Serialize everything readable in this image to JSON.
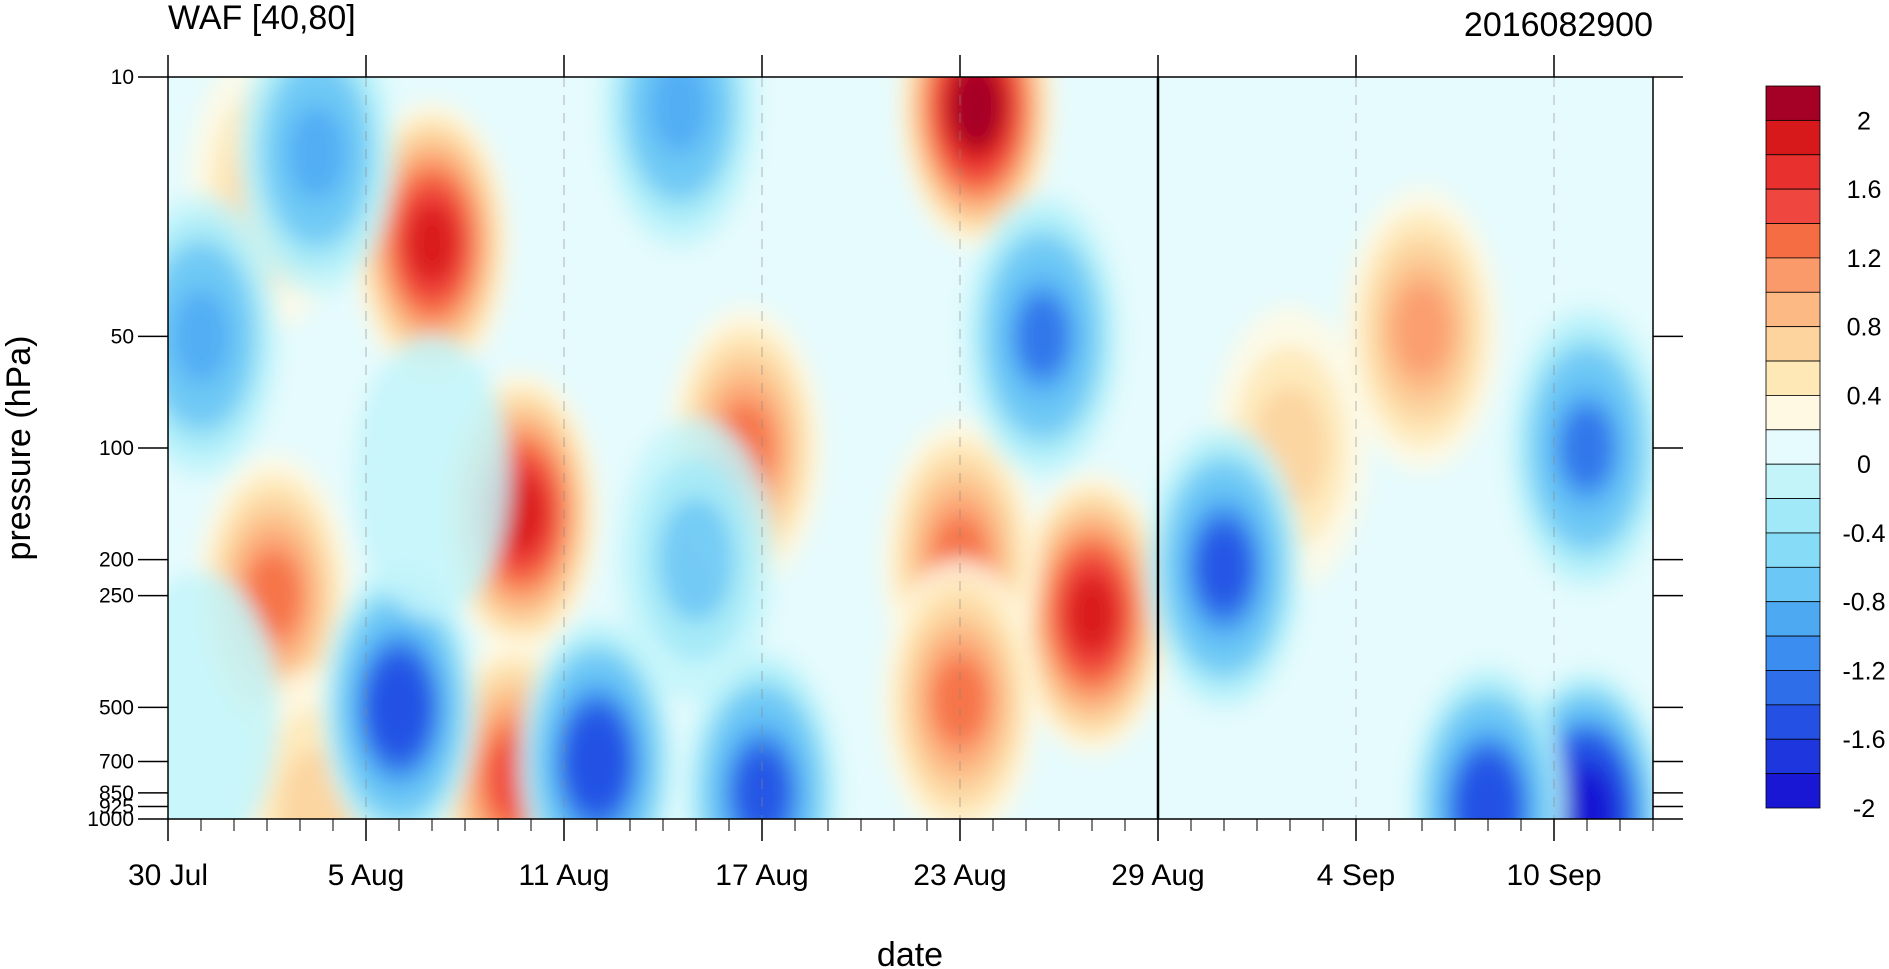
{
  "chart_data": {
    "type": "heatmap",
    "title": "WAF [40,80]",
    "subtitle": "2016082900",
    "xlabel": "date",
    "ylabel": "pressure (hPa)",
    "x_ticks": [
      "30 Jul",
      "5 Aug",
      "11 Aug",
      "17 Aug",
      "23 Aug",
      "29 Aug",
      "4 Sep",
      "10 Sep"
    ],
    "x_range": [
      "2016-07-30",
      "2016-09-13"
    ],
    "y_scale": "log",
    "y_reversed": true,
    "y_ticks": [
      10,
      50,
      100,
      200,
      250,
      500,
      700,
      850,
      925,
      1000
    ],
    "y_range": [
      1000,
      10
    ],
    "vertical_marker": "29 Aug",
    "colorbar": {
      "labels": [
        "2",
        "1.6",
        "1.2",
        "0.8",
        "0.4",
        "0",
        "-0.4",
        "-0.8",
        "-1.2",
        "-1.6",
        "-2"
      ],
      "levels": [
        2.2,
        2.0,
        1.8,
        1.6,
        1.4,
        1.2,
        1.0,
        0.8,
        0.6,
        0.4,
        0.2,
        0.0,
        -0.2,
        -0.4,
        -0.6,
        -0.8,
        -1.0,
        -1.2,
        -1.4,
        -1.6,
        -1.8,
        -2.0,
        -2.2
      ],
      "colors": [
        "#a50026",
        "#d7191c",
        "#e8312f",
        "#f04640",
        "#f46d43",
        "#fa9a6b",
        "#fcb984",
        "#fdd49e",
        "#fee8b5",
        "#fff9e4",
        "#e6fbfd",
        "#c2f4fa",
        "#a1e9f8",
        "#86dcf7",
        "#6bc7f5",
        "#4ea9f3",
        "#3c8df0",
        "#2e6ee9",
        "#2550e4",
        "#1e36dd",
        "#1a17d4"
      ]
    },
    "features": [
      {
        "date": 8,
        "p": 28,
        "value": 1.8
      },
      {
        "date": 24.5,
        "p": 12,
        "value": 2.2
      },
      {
        "date": 10.7,
        "p": 150,
        "value": 1.7
      },
      {
        "date": 28,
        "p": 280,
        "value": 1.9
      },
      {
        "date": 10.5,
        "p": 780,
        "value": 1.4
      },
      {
        "date": 3.2,
        "p": 250,
        "value": 1.2
      },
      {
        "date": 17.5,
        "p": 100,
        "value": 1.1
      },
      {
        "date": 24,
        "p": 200,
        "value": 1.1
      },
      {
        "date": 24,
        "p": 480,
        "value": 1.1
      },
      {
        "date": 38,
        "p": 48,
        "value": 0.9
      },
      {
        "date": 34,
        "p": 100,
        "value": 0.6
      },
      {
        "date": 4.5,
        "p": 950,
        "value": 0.6
      },
      {
        "date": 3,
        "p": 20,
        "value": 0.5
      },
      {
        "date": 26.5,
        "p": 50,
        "value": -1.1
      },
      {
        "date": 4.5,
        "p": 16,
        "value": -0.9
      },
      {
        "date": 1,
        "p": 50,
        "value": -1.0
      },
      {
        "date": 7,
        "p": 500,
        "value": -1.5
      },
      {
        "date": 13,
        "p": 700,
        "value": -1.5
      },
      {
        "date": 15.5,
        "p": 12,
        "value": -0.9
      },
      {
        "date": 32,
        "p": 210,
        "value": -1.3
      },
      {
        "date": 43,
        "p": 100,
        "value": -1.2
      },
      {
        "date": 43,
        "p": 960,
        "value": -2.2
      },
      {
        "date": 40,
        "p": 930,
        "value": -1.6
      },
      {
        "date": 18,
        "p": 850,
        "value": -1.3
      },
      {
        "date": 16,
        "p": 200,
        "value": -0.5
      },
      {
        "date": 8,
        "p": 120,
        "value": -0.3
      },
      {
        "date": 1,
        "p": 520,
        "value": -0.3
      }
    ]
  }
}
